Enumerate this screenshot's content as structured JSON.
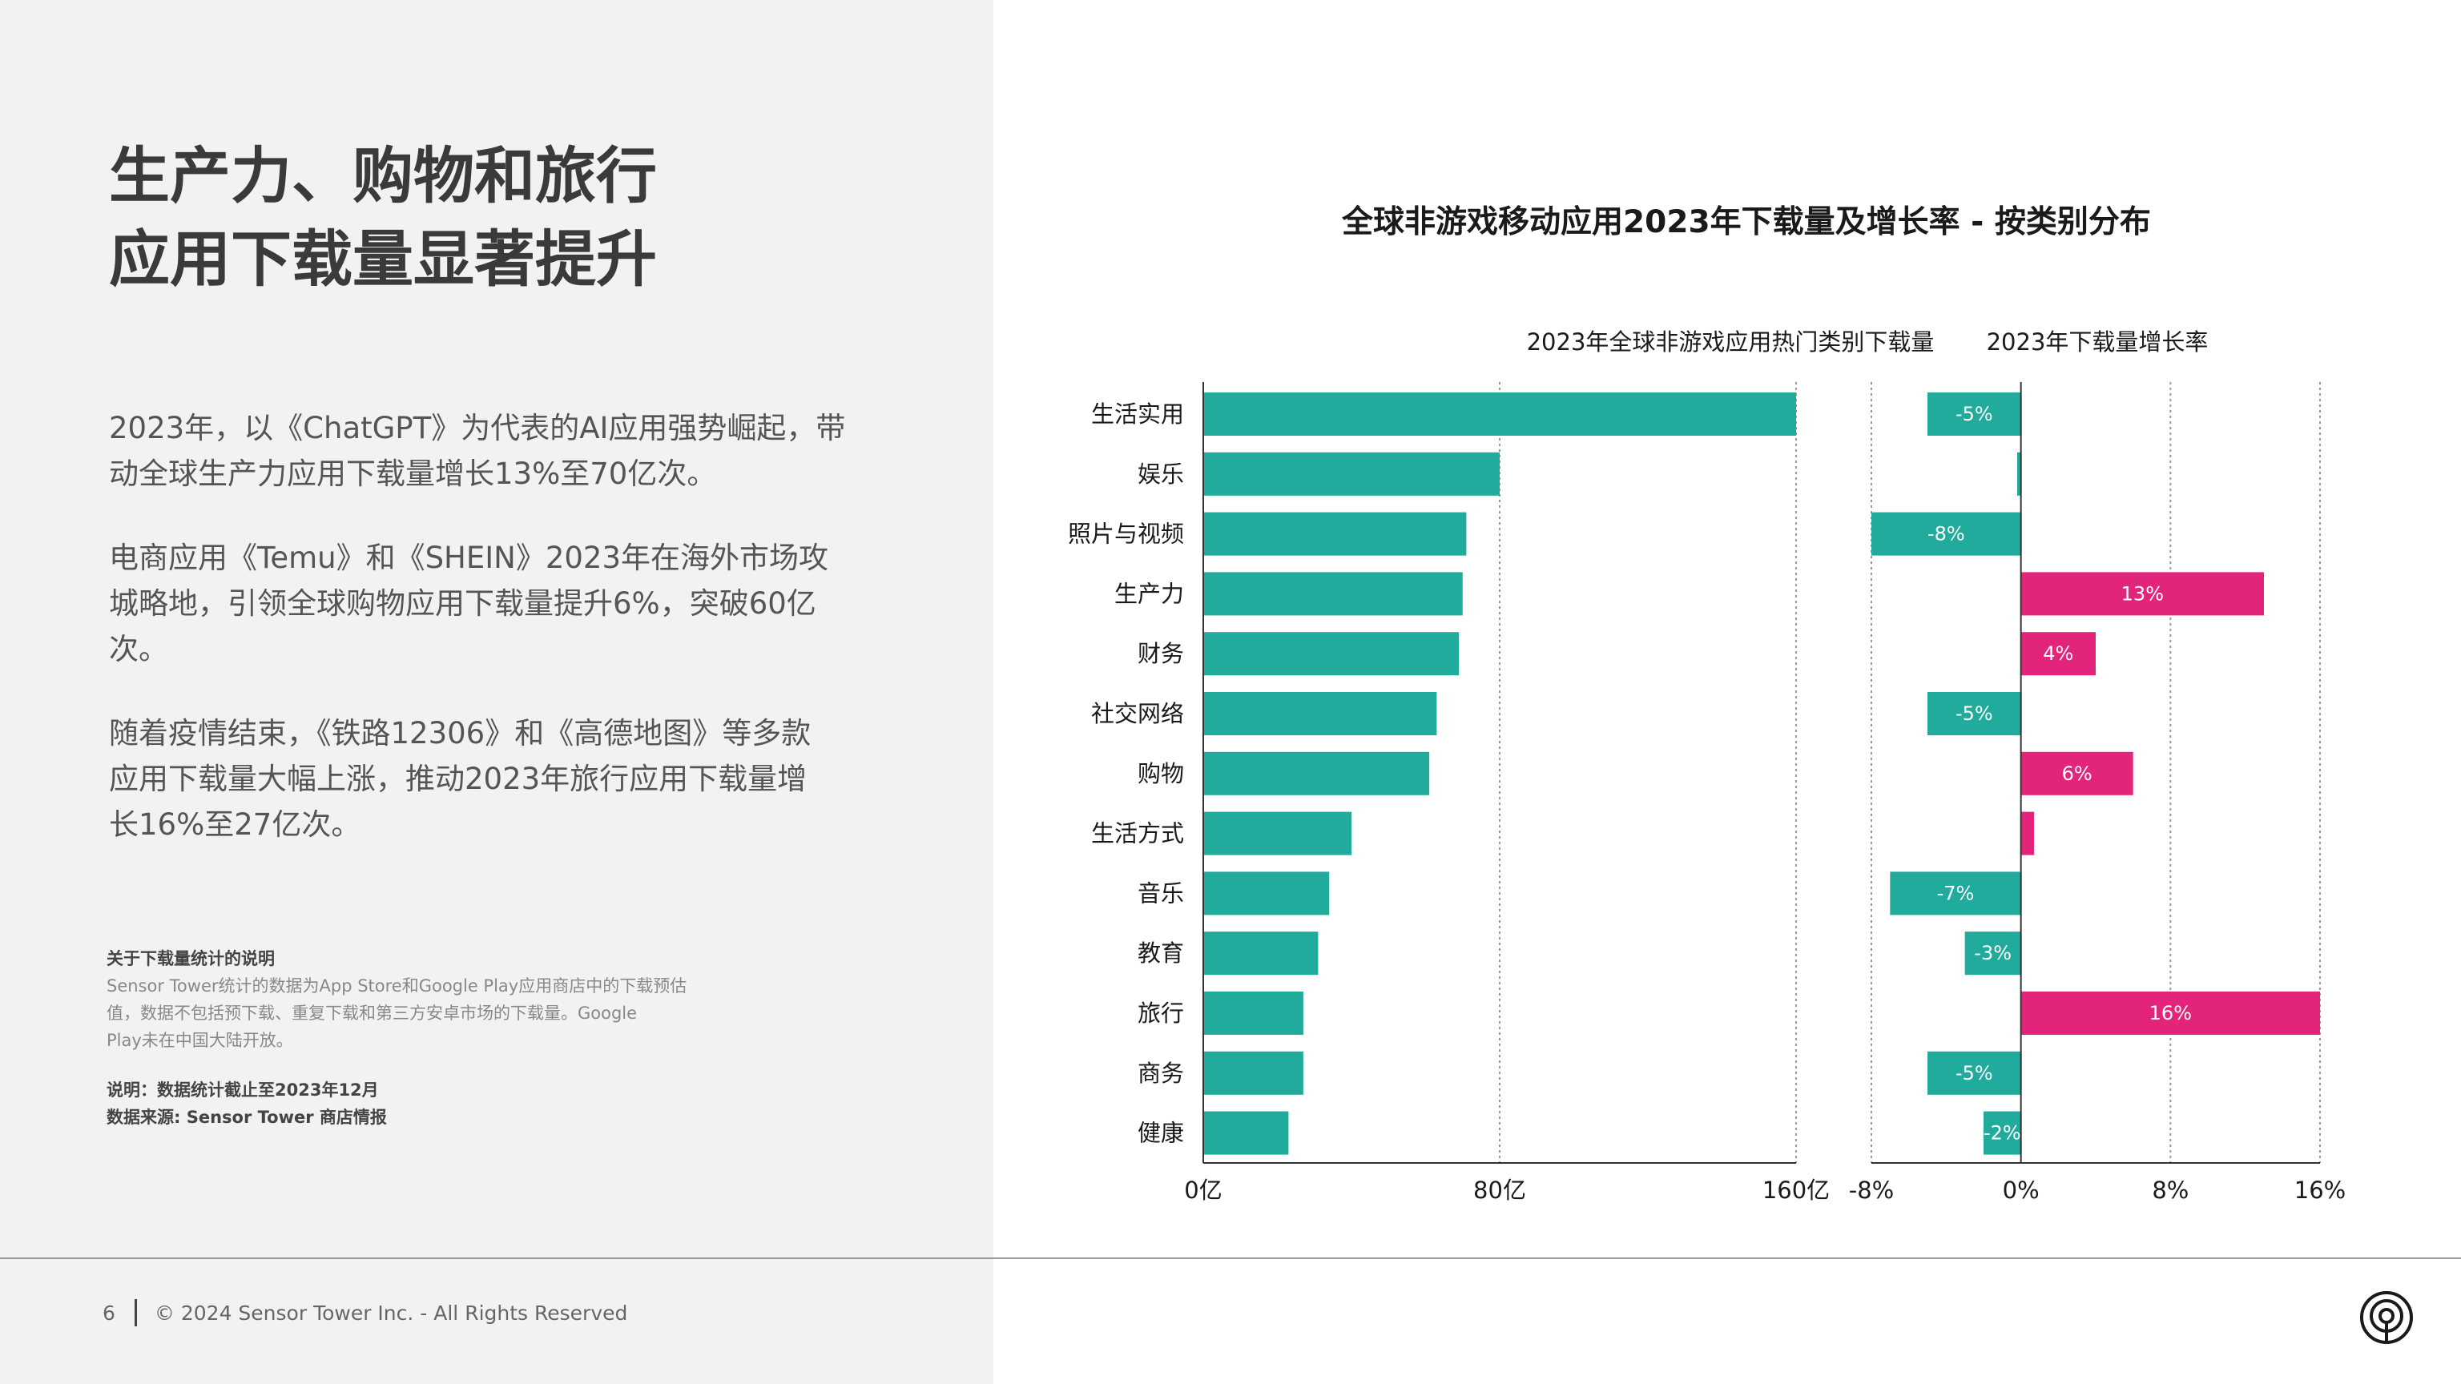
{
  "headline": [
    "生产力、购物和旅行",
    "应用下载量显著提升"
  ],
  "paragraphs": [
    [
      "2023年，以《ChatGPT》为代表的AI应用强势崛起，带",
      "动全球生产力应用下载量增长13%至70亿次。"
    ],
    [
      "电商应用《Temu》和《SHEIN》2023年在海外市场攻",
      "城略地，引领全球购物应用下载量提升6%，突破60亿",
      "次。"
    ],
    [
      "随着疫情结束，《铁路12306》和《高德地图》等多款",
      "应用下载量大幅上涨，推动2023年旅行应用下载量增",
      "长16%至27亿次。"
    ]
  ],
  "notes": {
    "title": "关于下载量统计的说明",
    "body": [
      "Sensor Tower统计的数据为App Store和Google Play应用商店中的下载预估",
      "值，数据不包括预下载、重复下载和第三方安卓市场的下载量。Google",
      "Play未在中国大陆开放。"
    ],
    "explanation": "说明：数据统计截止至2023年12月",
    "source": "数据来源: Sensor Tower 商店情报"
  },
  "footer": {
    "page_number": "6",
    "copyright": "© 2024 Sensor Tower Inc. - All Rights Reserved"
  },
  "chart_title": "全球非游戏移动应用2023年下载量及增长率 - 按类别分布",
  "colors": {
    "teal": "#21ab9c",
    "pink": "#e2247a",
    "grid": "#999999",
    "axis": "#333333"
  },
  "chart_data": [
    {
      "type": "bar",
      "orientation": "horizontal",
      "title": "2023年全球非游戏应用热门类别下载量",
      "categories": [
        "生活实用",
        "娱乐",
        "照片与视频",
        "生产力",
        "财务",
        "社交网络",
        "购物",
        "生活方式",
        "音乐",
        "教育",
        "旅行",
        "商务",
        "健康"
      ],
      "values": [
        160,
        80,
        71,
        70,
        69,
        63,
        61,
        40,
        34,
        31,
        27,
        27,
        23
      ],
      "xlim": [
        0,
        160
      ],
      "tick_labels": [
        "0亿",
        "80亿",
        "160亿"
      ],
      "grid": "vertical dotted at 80亿",
      "color": "#21ab9c"
    },
    {
      "type": "bar",
      "orientation": "horizontal",
      "title": "2023年下载量增长率",
      "categories": [
        "生活实用",
        "娱乐",
        "照片与视频",
        "生产力",
        "财务",
        "社交网络",
        "购物",
        "生活方式",
        "音乐",
        "教育",
        "旅行",
        "商务",
        "健康"
      ],
      "values": [
        -5,
        -0.2,
        -8,
        13,
        4,
        -5,
        6,
        0.7,
        -7,
        -3,
        16,
        -5,
        -2
      ],
      "data_labels": [
        "-5%",
        "",
        "-8%",
        "13%",
        "4%",
        "-5%",
        "6%",
        "",
        "-7%",
        "-3%",
        "16%",
        "-5%",
        "-2%"
      ],
      "xlim": [
        -8,
        16
      ],
      "tick_labels": [
        "-8%",
        "0%",
        "8%",
        "16%"
      ],
      "grid": "vertical dotted at -8%, 8%, 16%",
      "colors": {
        "negative": "#21ab9c",
        "positive": "#e2247a"
      }
    }
  ]
}
